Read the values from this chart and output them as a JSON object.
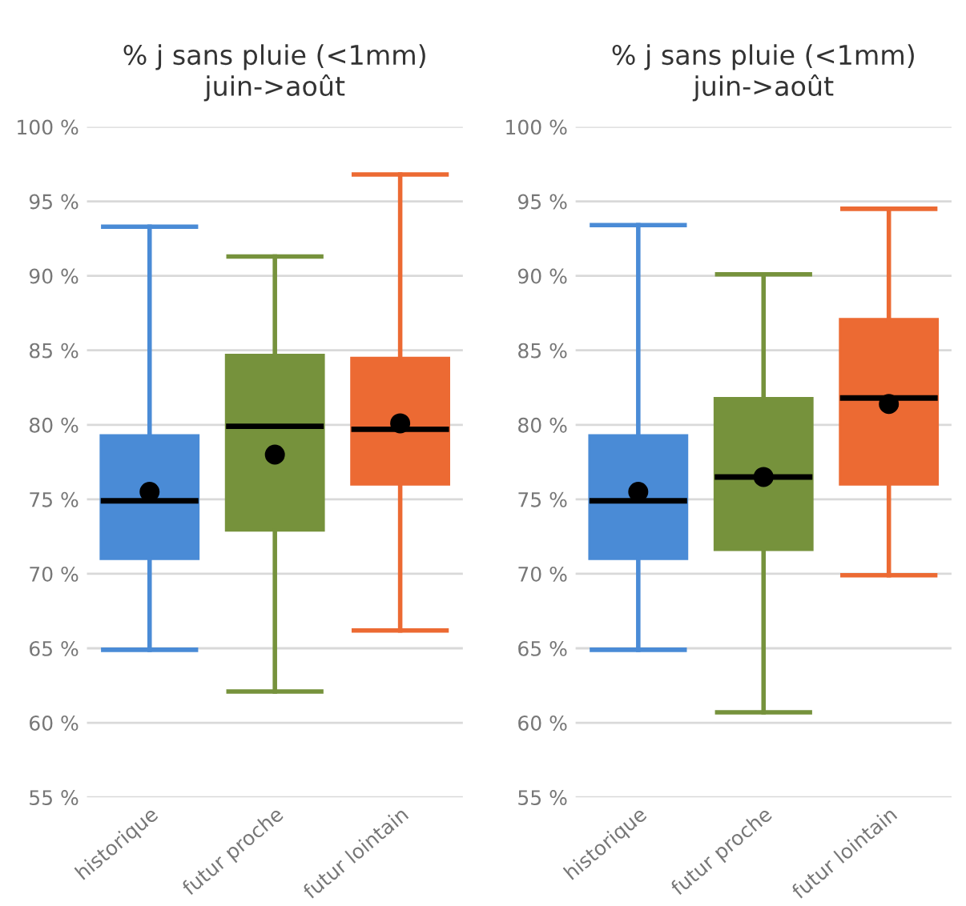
{
  "chart_data": [
    {
      "type": "box",
      "title": "% j sans pluie (<1mm)\njuin->août",
      "categories": [
        "historique",
        "futur proche",
        "futur lointain"
      ],
      "colors": [
        "#4a8bd6",
        "#76923c",
        "#ec6a33"
      ],
      "boxes": [
        {
          "low": 64.9,
          "q1": 71.0,
          "median": 74.9,
          "q3": 79.3,
          "high": 93.3,
          "mean": 75.5
        },
        {
          "low": 62.1,
          "q1": 72.9,
          "median": 79.9,
          "q3": 84.7,
          "high": 91.3,
          "mean": 78.0
        },
        {
          "low": 66.2,
          "q1": 76.0,
          "median": 79.7,
          "q3": 84.5,
          "high": 96.8,
          "mean": 80.1
        }
      ],
      "ylim": [
        55,
        100
      ],
      "yticks": [
        {
          "value": 55,
          "label": "55 %"
        },
        {
          "value": 60,
          "label": "60 %"
        },
        {
          "value": 65,
          "label": "65 %"
        },
        {
          "value": 70,
          "label": "70 %"
        },
        {
          "value": 75,
          "label": "75 %"
        },
        {
          "value": 80,
          "label": "80 %"
        },
        {
          "value": 85,
          "label": "85 %"
        },
        {
          "value": 90,
          "label": "90 %"
        },
        {
          "value": 95,
          "label": "95 %"
        },
        {
          "value": 100,
          "label": "100 %"
        }
      ],
      "grid": "y",
      "marker": "circle"
    },
    {
      "type": "box",
      "title": "% j sans pluie (<1mm)\njuin->août",
      "categories": [
        "historique",
        "futur proche",
        "futur lointain"
      ],
      "colors": [
        "#4a8bd6",
        "#76923c",
        "#ec6a33"
      ],
      "boxes": [
        {
          "low": 64.9,
          "q1": 71.0,
          "median": 74.9,
          "q3": 79.3,
          "high": 93.4,
          "mean": 75.5
        },
        {
          "low": 60.7,
          "q1": 71.6,
          "median": 76.5,
          "q3": 81.8,
          "high": 90.1,
          "mean": 76.5
        },
        {
          "low": 69.9,
          "q1": 76.0,
          "median": 81.8,
          "q3": 87.1,
          "high": 94.5,
          "mean": 81.4
        }
      ],
      "ylim": [
        55,
        100
      ],
      "yticks": [
        {
          "value": 55,
          "label": "55 %"
        },
        {
          "value": 60,
          "label": "60 %"
        },
        {
          "value": 65,
          "label": "65 %"
        },
        {
          "value": 70,
          "label": "70 %"
        },
        {
          "value": 75,
          "label": "75 %"
        },
        {
          "value": 80,
          "label": "80 %"
        },
        {
          "value": 85,
          "label": "85 %"
        },
        {
          "value": 90,
          "label": "90 %"
        },
        {
          "value": 95,
          "label": "95 %"
        },
        {
          "value": 100,
          "label": "100 %"
        }
      ],
      "grid": "y",
      "marker": "circle"
    }
  ]
}
